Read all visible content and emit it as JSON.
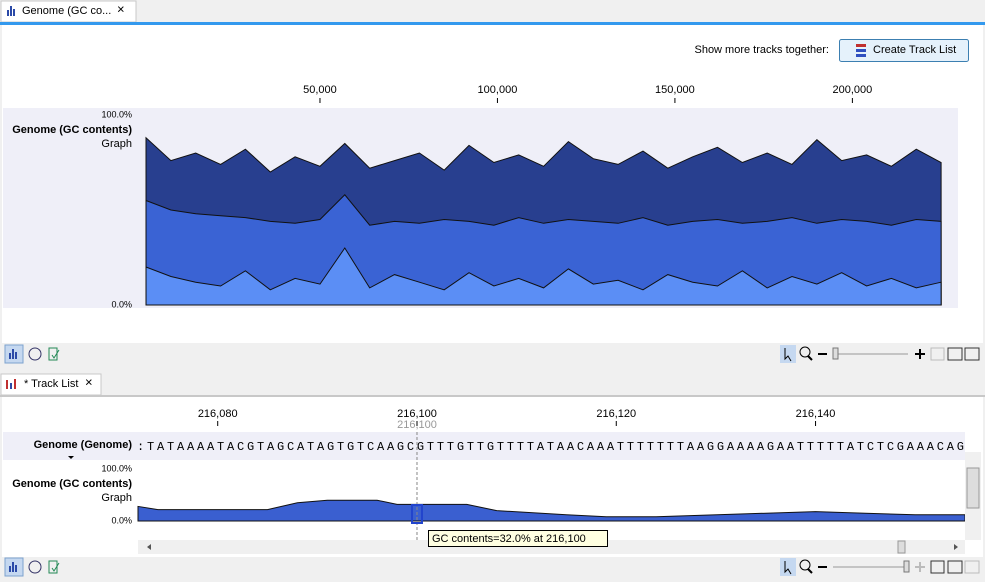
{
  "top_tab": {
    "title": "Genome (GC co...",
    "close": "×"
  },
  "toolbar": {
    "label": "Show more tracks together:",
    "button": "Create Track List"
  },
  "overview": {
    "ruler": {
      "xlim": [
        0,
        227500
      ],
      "xticks": [
        {
          "value": 50000,
          "label": "50,000"
        },
        {
          "value": 100000,
          "label": "100,000"
        },
        {
          "value": 150000,
          "label": "150,000"
        },
        {
          "value": 200000,
          "label": "200,000"
        }
      ]
    },
    "track": {
      "type": "area",
      "name": "Genome (GC contents)",
      "subtitle": "Graph",
      "ylim": [
        0,
        100
      ],
      "yticks": [
        {
          "value": 100,
          "label": "100.0%"
        },
        {
          "value": 0,
          "label": "0.0%"
        }
      ],
      "x": [
        1000,
        8000,
        15000,
        22000,
        29000,
        36000,
        43000,
        50000,
        57000,
        64000,
        71000,
        78000,
        85000,
        92000,
        99000,
        106000,
        113000,
        120000,
        127000,
        134000,
        141000,
        148000,
        155000,
        162000,
        169000,
        176000,
        183000,
        190000,
        197000,
        204000,
        211000,
        218000,
        225000
      ],
      "series": [
        {
          "color": "#283f8f",
          "values": [
            88,
            76,
            80,
            74,
            82,
            70,
            78,
            73,
            85,
            72,
            76,
            80,
            71,
            84,
            75,
            79,
            73,
            86,
            77,
            74,
            81,
            72,
            78,
            83,
            75,
            80,
            74,
            87,
            76,
            79,
            73,
            82,
            75
          ]
        },
        {
          "color": "#3a63d4",
          "values": [
            55,
            50,
            48,
            47,
            46,
            44,
            43,
            45,
            58,
            42,
            44,
            43,
            45,
            44,
            42,
            46,
            43,
            45,
            44,
            43,
            46,
            42,
            44,
            45,
            43,
            44,
            46,
            43,
            45,
            44,
            42,
            45,
            44
          ]
        },
        {
          "color": "#5b8ef5",
          "values": [
            20,
            15,
            12,
            10,
            18,
            8,
            14,
            11,
            30,
            9,
            16,
            12,
            8,
            17,
            10,
            14,
            9,
            19,
            11,
            13,
            8,
            16,
            12,
            10,
            18,
            9,
            15,
            11,
            17,
            10,
            14,
            9,
            12
          ]
        }
      ]
    }
  },
  "bottom_tab": {
    "title": "* Track List",
    "close": "×"
  },
  "detail": {
    "ruler": {
      "xlim": [
        216072,
        216155
      ],
      "xticks": [
        {
          "value": 216080,
          "label": "216,080"
        },
        {
          "value": 216100,
          "label": "216,100"
        },
        {
          "value": 216120,
          "label": "216,120"
        },
        {
          "value": 216140,
          "label": "216,140"
        }
      ],
      "cursor": {
        "value": 216100,
        "label": "216,100"
      }
    },
    "sequence_track": {
      "name": "Genome (Genome)",
      "sequence": ":TATAAAATACGTAGCATAGTGTCAAGCGTTTGTTGTTTTATAACAAATTTTTTTAAGGAAAAGAATTTTTATCTCGAAACAG"
    },
    "gc_track": {
      "type": "area",
      "name": "Genome (GC contents)",
      "subtitle": "Graph",
      "ylim": [
        0,
        100
      ],
      "yticks": [
        {
          "value": 100,
          "label": "100.0%"
        },
        {
          "value": 0,
          "label": "0.0%"
        }
      ],
      "x": [
        216072,
        216074,
        216085,
        216088,
        216091,
        216096,
        216098,
        216100,
        216105,
        216108,
        216115,
        216119,
        216124,
        216135,
        216140,
        216145,
        216150,
        216155
      ],
      "series": [
        {
          "color": "#3a5fd0",
          "values": [
            28,
            22,
            22,
            35,
            40,
            40,
            32,
            32,
            32,
            20,
            12,
            8,
            8,
            15,
            18,
            15,
            12,
            12
          ]
        }
      ]
    },
    "tooltip": "GC contents=32.0% at 216,100"
  }
}
